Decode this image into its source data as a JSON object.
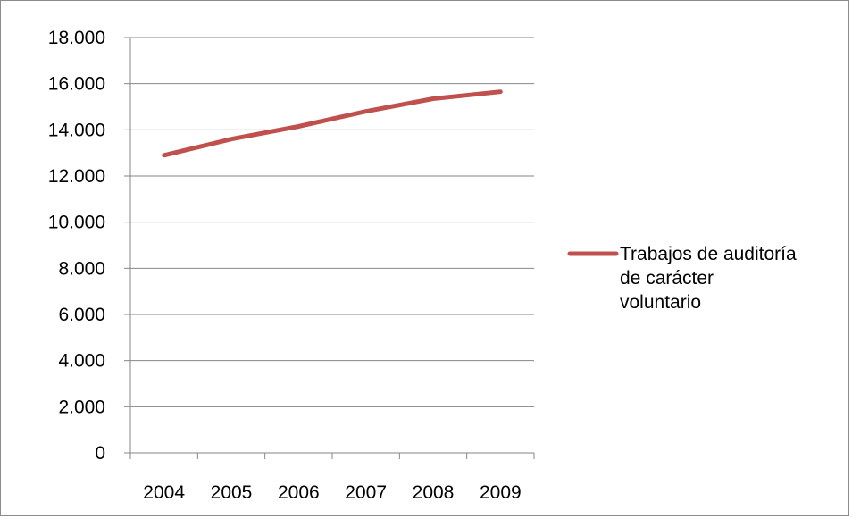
{
  "chart_data": {
    "type": "line",
    "title": "",
    "xlabel": "",
    "ylabel": "",
    "categories": [
      "2004",
      "2005",
      "2006",
      "2007",
      "2008",
      "2009"
    ],
    "ylim": [
      0,
      18000
    ],
    "y_ticks": [
      0,
      2000,
      4000,
      6000,
      8000,
      10000,
      12000,
      14000,
      16000,
      18000
    ],
    "y_tick_labels": [
      "0",
      "2.000",
      "4.000",
      "6.000",
      "8.000",
      "10.000",
      "12.000",
      "14.000",
      "16.000",
      "18.000"
    ],
    "grid": true,
    "legend_position": "right",
    "series": [
      {
        "name": "Trabajos de auditoría de carácter voluntario",
        "legend_lines": [
          "Trabajos de auditoría",
          "de carácter",
          "voluntario"
        ],
        "color": "#c0504d",
        "values": [
          12900,
          13600,
          14150,
          14800,
          15350,
          15650
        ]
      }
    ]
  }
}
